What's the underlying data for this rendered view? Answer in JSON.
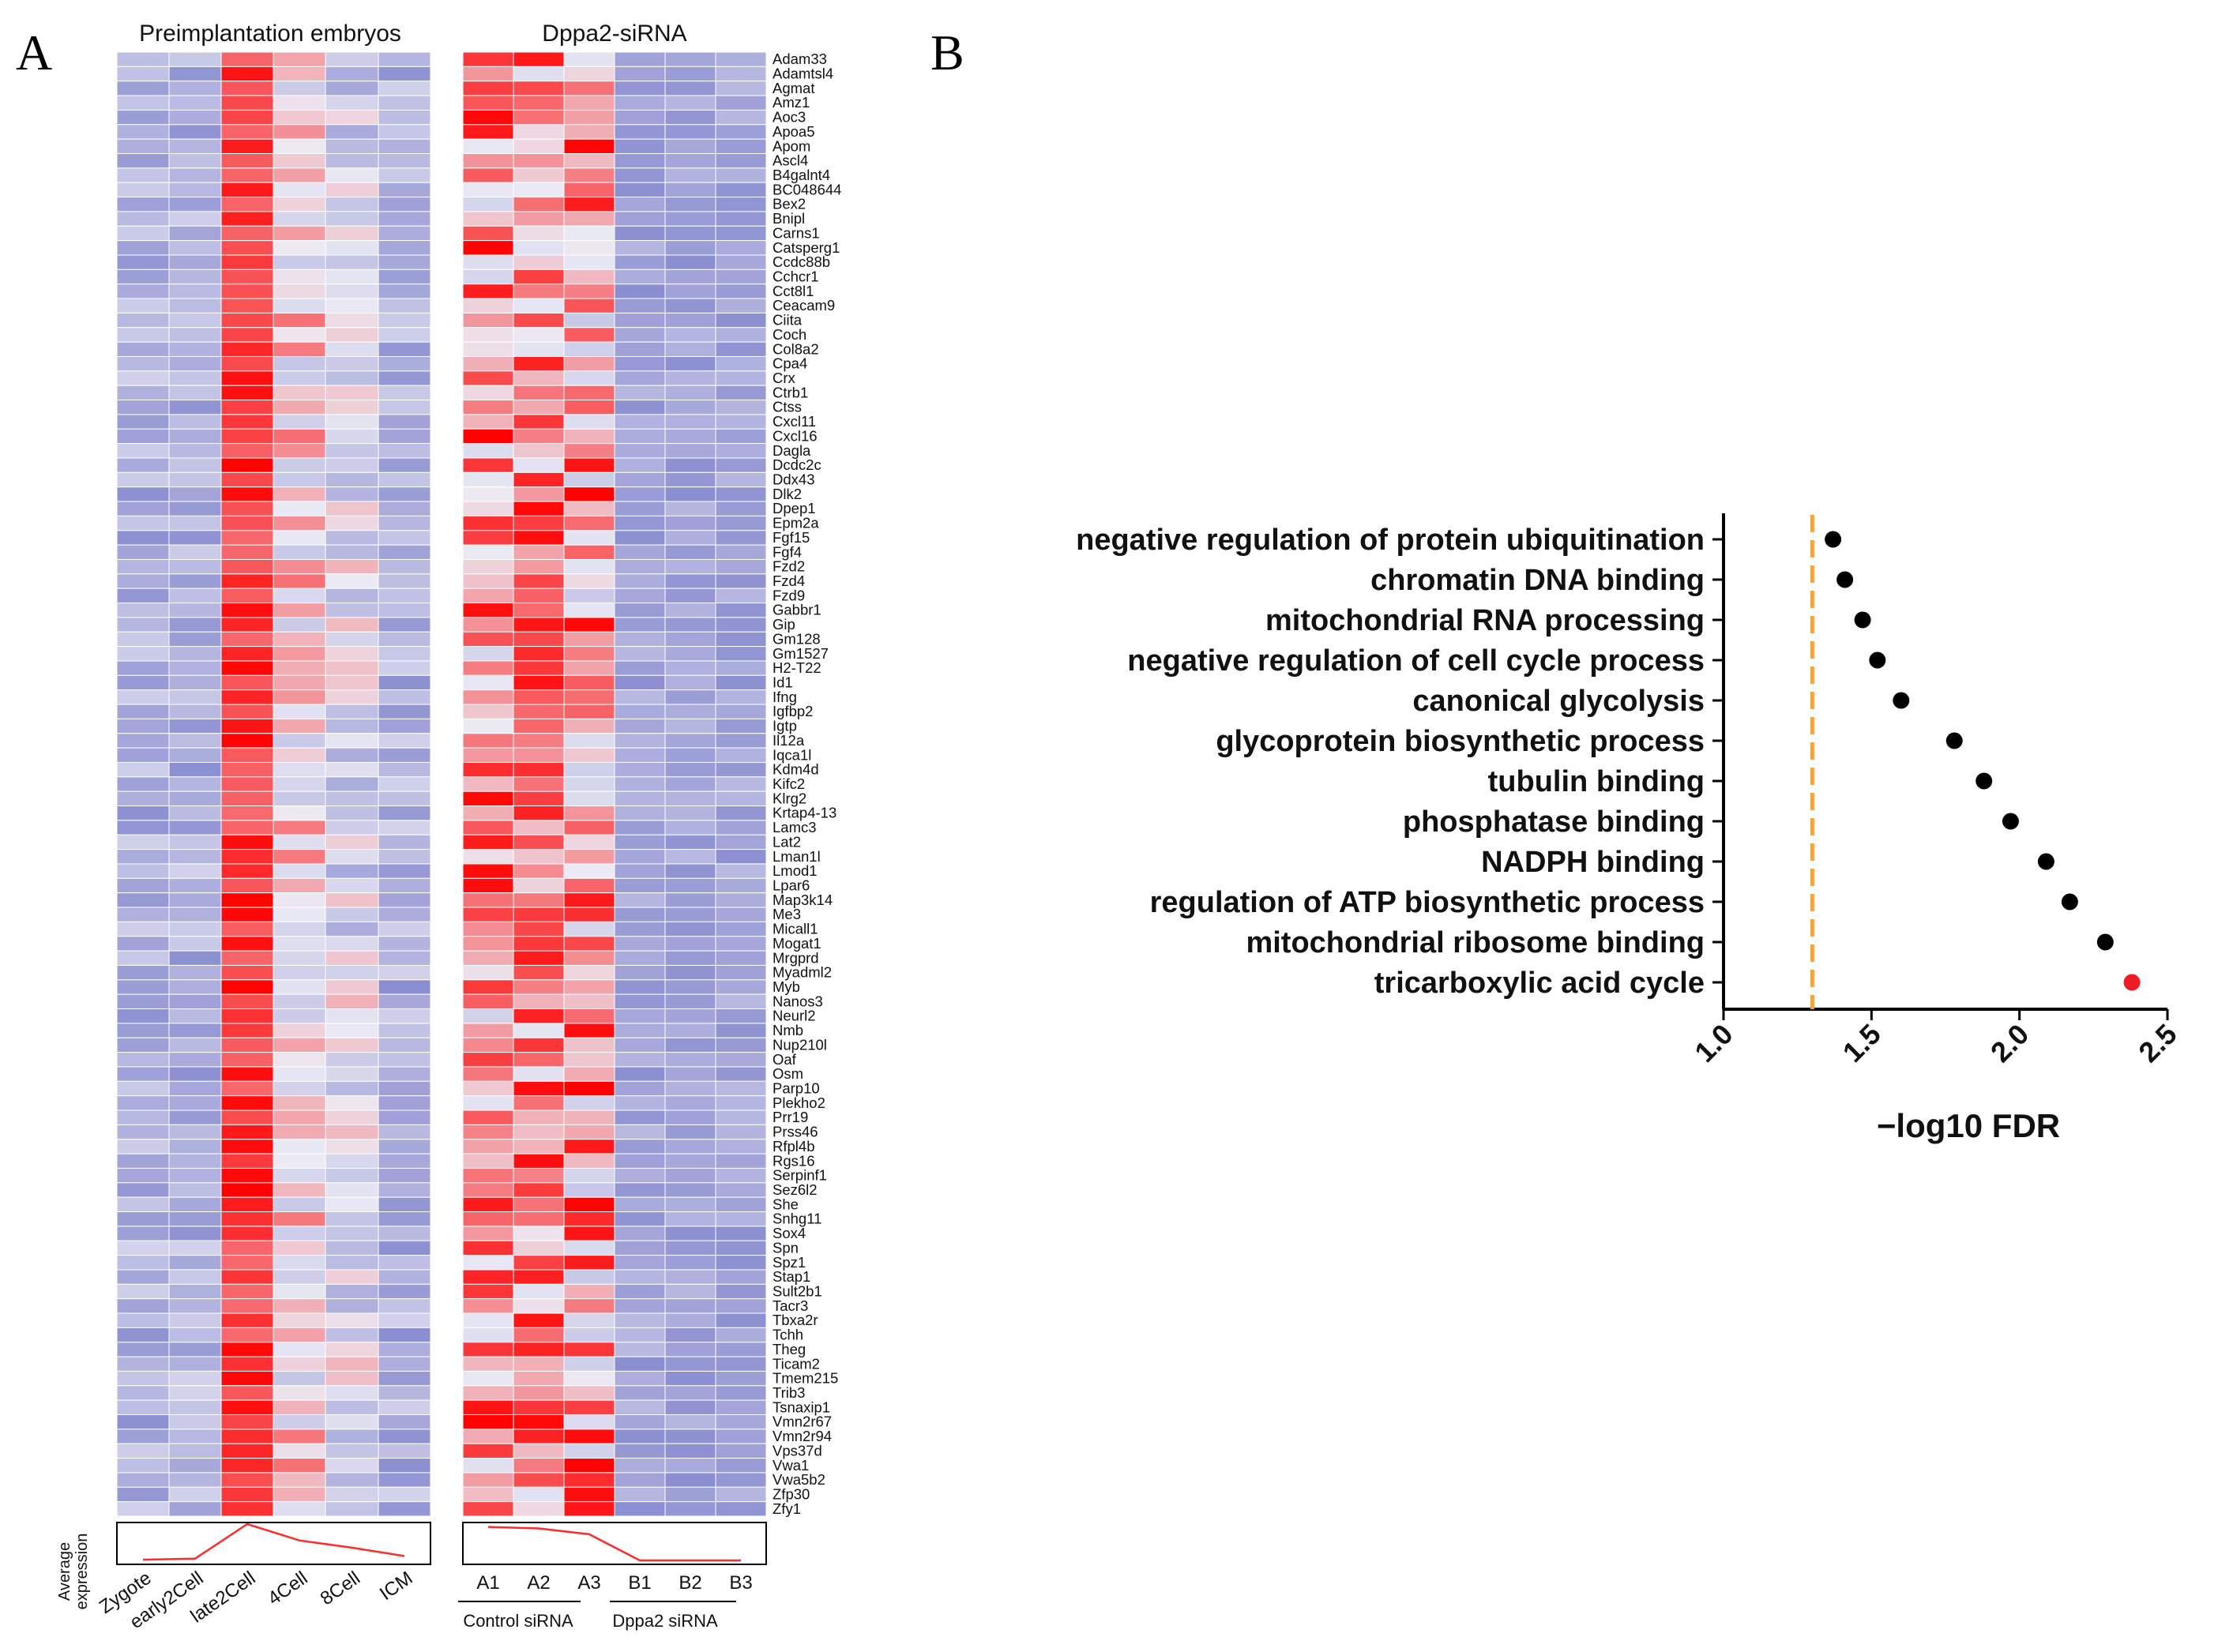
{
  "panel_labels": {
    "a": "A",
    "b": "B"
  },
  "colors": {
    "low": "#6b6fc4",
    "mid": "#ecebf5",
    "high": "#ff0000",
    "line": "#ff2a2a",
    "dot": "#000000",
    "highlight_dot": "#ee1c25",
    "threshold": "#f5a243"
  },
  "chart_data": [
    {
      "type": "heatmap",
      "title_left": "Preimplantation embryos",
      "title_right": "Dppa2-siRNA",
      "columns_left": [
        "Zygote",
        "early2Cell",
        "late2Cell",
        "4Cell",
        "8Cell",
        "ICM"
      ],
      "columns_right": [
        "A1",
        "A2",
        "A3",
        "B1",
        "B2",
        "B3"
      ],
      "group_labels": [
        "Control siRNA",
        "Dppa2 siRNA"
      ],
      "average_label": [
        "Average",
        "expression"
      ],
      "average_left": [
        0.02,
        0.05,
        1.0,
        0.55,
        0.35,
        0.12
      ],
      "average_right": [
        0.92,
        0.88,
        0.72,
        0.0,
        0.0,
        0.0
      ],
      "genes": [
        "Adam33",
        "Adamtsl4",
        "Agmat",
        "Amz1",
        "Aoc3",
        "Apoa5",
        "Apom",
        "Ascl4",
        "B4galnt4",
        "BC048644",
        "Bex2",
        "Bnipl",
        "Carns1",
        "Catsperg1",
        "Ccdc88b",
        "Cchcr1",
        "Cct8l1",
        "Ceacam9",
        "Ciita",
        "Coch",
        "Col8a2",
        "Cpa4",
        "Crx",
        "Ctrb1",
        "Ctss",
        "Cxcl11",
        "Cxcl16",
        "Dagla",
        "Dcdc2c",
        "Ddx43",
        "Dlk2",
        "Dpep1",
        "Epm2a",
        "Fgf15",
        "Fgf4",
        "Fzd2",
        "Fzd4",
        "Fzd9",
        "Gabbr1",
        "Gip",
        "Gm128",
        "Gm1527",
        "H2-T22",
        "Id1",
        "Ifng",
        "Igfbp2",
        "Igtp",
        "Il12a",
        "Iqca1l",
        "Kdm4d",
        "Kifc2",
        "Klrg2",
        "Krtap4-13",
        "Lamc3",
        "Lat2",
        "Lman1l",
        "Lmod1",
        "Lpar6",
        "Map3k14",
        "Me3",
        "Micall1",
        "Mogat1",
        "Mrgprd",
        "Myadml2",
        "Myb",
        "Nanos3",
        "Neurl2",
        "Nmb",
        "Nup210l",
        "Oaf",
        "Osm",
        "Parp10",
        "Plekho2",
        "Prr19",
        "Prss46",
        "Rfpl4b",
        "Rgs16",
        "Serpinf1",
        "Sez6l2",
        "She",
        "Snhg11",
        "Sox4",
        "Spn",
        "Spz1",
        "Stap1",
        "Sult2b1",
        "Tacr3",
        "Tbxa2r",
        "Tchh",
        "Theg",
        "Ticam2",
        "Tmem215",
        "Trib3",
        "Tsnaxip1",
        "Vmn2r67",
        "Vmn2r94",
        "Vps37d",
        "Vwa1",
        "Vwa5b2",
        "Zfp30",
        "Zfy1"
      ]
    },
    {
      "type": "scatter",
      "terms": [
        "negative regulation of protein ubiquitination",
        "chromatin DNA binding",
        "mitochondrial RNA processing",
        "negative regulation of cell cycle process",
        "canonical glycolysis",
        "glycoprotein biosynthetic process",
        "tubulin binding",
        "phosphatase binding",
        "NADPH binding",
        "regulation of ATP biosynthetic process",
        "mitochondrial ribosome binding",
        "tricarboxylic acid cycle"
      ],
      "values": [
        1.37,
        1.41,
        1.47,
        1.52,
        1.6,
        1.78,
        1.88,
        1.97,
        2.09,
        2.17,
        2.29,
        2.38
      ],
      "highlight_index": 11,
      "threshold": 1.3,
      "xlabel": "−log10 FDR",
      "xlim": [
        1.0,
        2.5
      ],
      "xticks": [
        "1.0",
        "1.5",
        "2.0",
        "2.5"
      ]
    }
  ]
}
